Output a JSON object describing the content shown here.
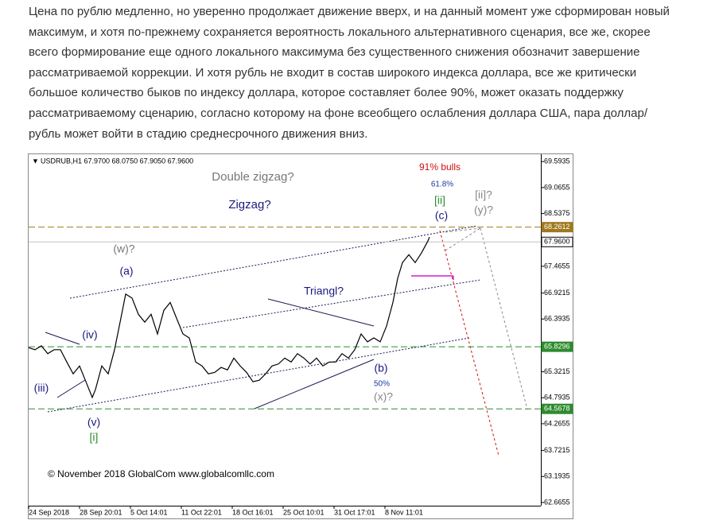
{
  "paragraph": [
    "Цена по рублю медленно, но уверенно продолжает движение вверх, и на данный момент уже сформирован новый",
    "максимум, и хотя по-прежнему сохраняется вероятность локального альтернативного сценария, все же, скорее",
    "всего формирование еще одного локального максимума без существенного снижения обозначит завершение",
    "рассматриваемой коррекции. И хотя рубль не входит в состав широкого индекса доллара, все же критически",
    "большое количество быков по индексу доллара, которое составляет более 90%, может оказать поддержку",
    "рассматриваемому сценарию, согласно которому на фоне всеобщего ослабления доллара США, пара доллар/",
    "рубль может войти в стадию среднесрочного движения вниз."
  ],
  "chart_data": {
    "type": "line",
    "header": "USDRUB,H1  67.9700 68.0750 67.9050 67.9600",
    "copyright": "© November 2018 GlobalCom www.globalcomllc.com",
    "series": [
      {
        "color": "#000000",
        "x": [
          0,
          8,
          16,
          24,
          32,
          40,
          48,
          56,
          64,
          72,
          80,
          84,
          92,
          100,
          108,
          114,
          122,
          130,
          138,
          146,
          154,
          162,
          170,
          178,
          186,
          194,
          202,
          210,
          218,
          226,
          234,
          242,
          250,
          258,
          266,
          274,
          282,
          290,
          298,
          306,
          314,
          322,
          330,
          338,
          346,
          354,
          362,
          370,
          378,
          386,
          394,
          402,
          410,
          418,
          426,
          434,
          442,
          450,
          458,
          464,
          470,
          478,
          486,
          494,
          502,
          504
        ],
        "values": [
          65.81,
          65.77,
          65.85,
          65.69,
          65.77,
          65.77,
          65.52,
          65.28,
          65.44,
          65.12,
          64.8,
          64.96,
          65.44,
          65.28,
          65.77,
          66.25,
          66.9,
          66.82,
          66.49,
          66.33,
          66.49,
          66.09,
          66.57,
          66.73,
          66.41,
          66.09,
          66.01,
          65.52,
          65.44,
          65.28,
          65.31,
          65.41,
          65.36,
          65.6,
          65.44,
          65.31,
          65.12,
          65.15,
          65.28,
          65.44,
          65.48,
          65.6,
          65.52,
          65.69,
          65.6,
          65.48,
          65.6,
          65.44,
          65.52,
          65.52,
          65.69,
          65.6,
          65.77,
          66.09,
          65.93,
          66.01,
          65.93,
          66.25,
          66.73,
          67.22,
          67.54,
          67.7,
          67.54,
          67.74,
          67.98,
          68.06
        ]
      }
    ],
    "xlim": [
      0,
      644
    ],
    "xticks": [
      {
        "value": 0,
        "label": "24 Sep 2018"
      },
      {
        "value": 64,
        "label": "28 Sep 20:01"
      },
      {
        "value": 128,
        "label": "5 Oct 14:01"
      },
      {
        "value": 192,
        "label": "11 Oct 22:01"
      },
      {
        "value": 256,
        "label": "18 Oct 16:01"
      },
      {
        "value": 320,
        "label": "25 Oct 10:01"
      },
      {
        "value": 384,
        "label": "31 Oct 17:01"
      },
      {
        "value": 448,
        "label": "8 Nov 11:01"
      }
    ],
    "ylim": [
      62.6,
      69.71
    ],
    "yticks": [
      69.5935,
      69.0655,
      68.5375,
      67.4655,
      66.9215,
      66.3935,
      65.3215,
      64.7935,
      64.2655,
      63.7215,
      63.1935,
      62.6655
    ],
    "levels": [
      {
        "value": 68.2612,
        "color": "#a0781e"
      },
      {
        "value": {
          "value": 67.96,
          "label": "67.9600"
        },
        "color": "#c0c0c0"
      },
      {
        "value": 65.8296,
        "color": "#2e8b2e"
      },
      {
        "value": 64.5678,
        "color": "#2e8b2e"
      }
    ],
    "annotations": [
      {
        "text": "Double zigzag?",
        "color": "#777777"
      },
      {
        "text": "Zigzag?",
        "color": "#1a1a80"
      },
      {
        "text": "91% bulls",
        "color": "#d01010"
      },
      {
        "text": "61.8%",
        "color": "#1a3aa0"
      },
      {
        "text": "[ii]",
        "color": "#2e8b2e"
      },
      {
        "text": "(c)",
        "color": "#1a1a80"
      },
      {
        "text": "[ii]?",
        "color": "#888888"
      },
      {
        "text": "(y)?",
        "color": "#888888"
      },
      {
        "text": "(w)?",
        "color": "#777777"
      },
      {
        "text": "(a)",
        "color": "#1a1a80"
      },
      {
        "text": "Triangl?",
        "color": "#1a1a80"
      },
      {
        "text": "(iv)",
        "color": "#1a1a80"
      },
      {
        "text": "(iii)",
        "color": "#1a1a80"
      },
      {
        "text": "(b)",
        "color": "#1a1a80"
      },
      {
        "text": "50%",
        "color": "#1a3aa0"
      },
      {
        "text": "(x)?",
        "color": "#888888"
      },
      {
        "text": "(v)",
        "color": "#1a1a80"
      },
      {
        "text": "[i]",
        "color": "#2e8b2e"
      }
    ]
  }
}
